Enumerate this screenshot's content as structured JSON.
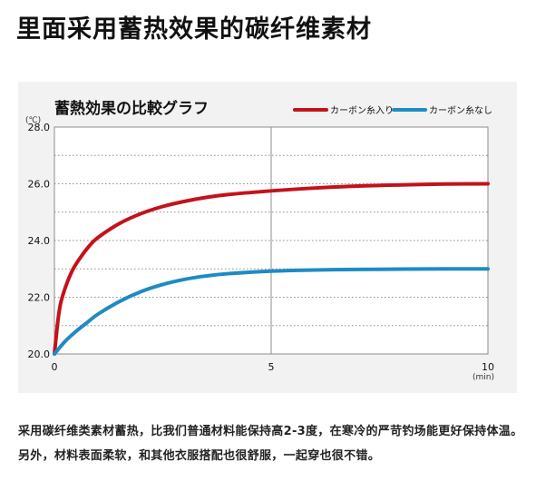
{
  "headline": "里面采用蓄热效果的碳纤维素材",
  "description": "采用碳纤维类素材蓄热，比我们普通材料能保持高2-3度，在寒冷的严苛钓场能更好保持体温。另外，材料表面柔软，和其他衣服搭配也很舒服，一起穿也很不错。",
  "chart_data": {
    "type": "line",
    "title": "蓄熱効果の比較グラフ",
    "y_unit": "(℃)",
    "x_unit": "(min)",
    "xlim": [
      0,
      10
    ],
    "ylim": [
      20.0,
      28.0
    ],
    "x_ticks": [
      "0",
      "5",
      "10"
    ],
    "y_ticks": [
      "28.0",
      "26.0",
      "24.0",
      "22.0",
      "20.0"
    ],
    "legend_position": "top-right",
    "series": [
      {
        "name": "カーボン糸入り",
        "color": "#c4121a",
        "x": [
          0,
          0.1,
          0.2,
          0.4,
          0.6,
          0.8,
          1.0,
          1.5,
          2.0,
          2.5,
          3.0,
          3.5,
          4.0,
          5.0,
          6.0,
          7.0,
          8.0,
          9.0,
          10.0
        ],
        "y": [
          20.0,
          21.4,
          22.1,
          22.9,
          23.4,
          23.8,
          24.1,
          24.6,
          24.95,
          25.2,
          25.38,
          25.52,
          25.62,
          25.75,
          25.85,
          25.92,
          25.96,
          25.99,
          26.0
        ]
      },
      {
        "name": "カーボン糸なし",
        "color": "#1e8bc3",
        "x": [
          0,
          0.25,
          0.5,
          0.75,
          1.0,
          1.5,
          2.0,
          2.5,
          3.0,
          3.5,
          4.0,
          5.0,
          6.0,
          7.0,
          8.0,
          9.0,
          10.0
        ],
        "y": [
          20.0,
          20.45,
          20.8,
          21.1,
          21.4,
          21.85,
          22.2,
          22.45,
          22.63,
          22.75,
          22.83,
          22.92,
          22.96,
          22.98,
          22.99,
          23.0,
          23.0
        ]
      }
    ]
  }
}
